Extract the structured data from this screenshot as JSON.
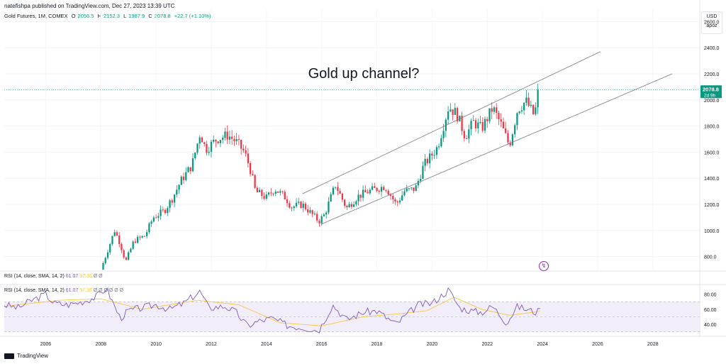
{
  "publisher_line": "natefishpa published on TradingView.com, Dec 27, 2023 13:39 UTC",
  "legend": {
    "symbol": "Gold Futures, 1M, COMEX",
    "o_label": "O",
    "o_value": "2056.5",
    "h_label": "H",
    "h_value": "2152.3",
    "l_label": "L",
    "l_value": "1987.9",
    "c_label": "C",
    "c_value": "2078.8",
    "change": "+22.7 (+1.10%)"
  },
  "currency_box": {
    "currency": "USD",
    "scale": "apoz"
  },
  "price_badge": {
    "price": "2078.8",
    "countdown": "2d 9h"
  },
  "annotation": {
    "text": "Gold up channel?"
  },
  "rsi_legend": {
    "label": "RSI (14, close, SMA, 14, 2)",
    "value_rsi": "61.07",
    "value_sma": "57.36",
    "extras": "Ø Ø"
  },
  "rsi_legend_2": {
    "label": "RSI (14, close, SMA, 14, 2)",
    "value_rsi": "61.07",
    "value_sma": "57.36",
    "extras": "Ø Ø Ø Ø Ø Ø"
  },
  "footer": {
    "brand": "TradingView"
  },
  "bolt_icon": "lightning-bolt-icon",
  "colors": {
    "up": "#089981",
    "down": "#f23645",
    "rsi": "#7e57c2",
    "rsi_sma": "#f5c842",
    "channel": "#787b86",
    "band": "#ede7f6"
  },
  "chart_data": {
    "type": "candlestick",
    "timeframe": "1M",
    "price_axis": {
      "min": 700,
      "max": 2700,
      "ticks": [
        "800.0",
        "1000.0",
        "1200.0",
        "1400.0",
        "1600.0",
        "1800.0",
        "2000.0",
        "2200.0",
        "2400.0",
        "2600.0"
      ],
      "tick_values": [
        800,
        1000,
        1200,
        1400,
        1600,
        1800,
        2000,
        2200,
        2400,
        2600
      ]
    },
    "time_axis": {
      "min": 2004.5,
      "max": 2029.7,
      "ticks": [
        "2006",
        "2008",
        "2010",
        "2012",
        "2014",
        "2016",
        "2018",
        "2020",
        "2022",
        "2024",
        "2026",
        "2028"
      ],
      "tick_values": [
        2006,
        2008,
        2010,
        2012,
        2014,
        2016,
        2018,
        2020,
        2022,
        2024,
        2026,
        2028
      ]
    },
    "last_price": 2078.8,
    "channel_lines": [
      {
        "name": "upper",
        "from": [
          2015.3,
          1280
        ],
        "to": [
          2026.1,
          2370
        ]
      },
      {
        "name": "lower",
        "from": [
          2016.0,
          1050
        ],
        "to": [
          2028.7,
          2200
        ]
      }
    ],
    "close_anchors": [
      [
        2008.0,
        700
      ],
      [
        2008.2,
        820
      ],
      [
        2008.5,
        1000
      ],
      [
        2008.7,
        900
      ],
      [
        2008.9,
        760
      ],
      [
        2009.2,
        920
      ],
      [
        2009.6,
        960
      ],
      [
        2009.9,
        1100
      ],
      [
        2010.3,
        1150
      ],
      [
        2010.6,
        1250
      ],
      [
        2010.9,
        1380
      ],
      [
        2011.3,
        1500
      ],
      [
        2011.6,
        1750
      ],
      [
        2011.8,
        1620
      ],
      [
        2012.2,
        1700
      ],
      [
        2012.6,
        1730
      ],
      [
        2012.9,
        1680
      ],
      [
        2013.2,
        1600
      ],
      [
        2013.4,
        1480
      ],
      [
        2013.6,
        1300
      ],
      [
        2014.0,
        1250
      ],
      [
        2014.3,
        1320
      ],
      [
        2014.7,
        1250
      ],
      [
        2014.9,
        1180
      ],
      [
        2015.3,
        1200
      ],
      [
        2015.9,
        1070
      ],
      [
        2016.1,
        1120
      ],
      [
        2016.5,
        1350
      ],
      [
        2016.9,
        1170
      ],
      [
        2017.3,
        1260
      ],
      [
        2017.7,
        1300
      ],
      [
        2018.3,
        1340
      ],
      [
        2018.7,
        1200
      ],
      [
        2019.0,
        1300
      ],
      [
        2019.4,
        1320
      ],
      [
        2019.7,
        1500
      ],
      [
        2020.0,
        1580
      ],
      [
        2020.2,
        1640
      ],
      [
        2020.6,
        1950
      ],
      [
        2020.9,
        1890
      ],
      [
        2021.2,
        1720
      ],
      [
        2021.5,
        1830
      ],
      [
        2021.8,
        1780
      ],
      [
        2022.2,
        1940
      ],
      [
        2022.5,
        1810
      ],
      [
        2022.8,
        1650
      ],
      [
        2023.1,
        1930
      ],
      [
        2023.4,
        1990
      ],
      [
        2023.7,
        1880
      ],
      [
        2023.9,
        2078.8
      ]
    ],
    "rsi_panel": {
      "axis": {
        "min": 25,
        "max": 92,
        "ticks": [
          "40.00",
          "60.00",
          "80.00"
        ],
        "tick_values": [
          40,
          60,
          80
        ]
      },
      "band": [
        30,
        70
      ],
      "mid": 50,
      "rsi_anchors": [
        [
          2004.5,
          66
        ],
        [
          2005.0,
          62
        ],
        [
          2005.5,
          72
        ],
        [
          2006.0,
          80
        ],
        [
          2006.3,
          68
        ],
        [
          2006.8,
          66
        ],
        [
          2007.3,
          70
        ],
        [
          2007.8,
          76
        ],
        [
          2008.2,
          88
        ],
        [
          2008.7,
          48
        ],
        [
          2009.0,
          58
        ],
        [
          2009.5,
          62
        ],
        [
          2010.0,
          66
        ],
        [
          2010.5,
          60
        ],
        [
          2011.0,
          68
        ],
        [
          2011.6,
          84
        ],
        [
          2011.9,
          62
        ],
        [
          2012.5,
          64
        ],
        [
          2012.9,
          56
        ],
        [
          2013.3,
          38
        ],
        [
          2013.7,
          44
        ],
        [
          2014.2,
          48
        ],
        [
          2014.8,
          38
        ],
        [
          2015.3,
          36
        ],
        [
          2015.9,
          32
        ],
        [
          2016.4,
          66
        ],
        [
          2016.9,
          46
        ],
        [
          2017.5,
          56
        ],
        [
          2018.0,
          58
        ],
        [
          2018.7,
          40
        ],
        [
          2019.0,
          50
        ],
        [
          2019.5,
          66
        ],
        [
          2020.0,
          68
        ],
        [
          2020.6,
          86
        ],
        [
          2021.0,
          62
        ],
        [
          2021.4,
          58
        ],
        [
          2021.8,
          56
        ],
        [
          2022.2,
          64
        ],
        [
          2022.7,
          42
        ],
        [
          2023.1,
          64
        ],
        [
          2023.4,
          60
        ],
        [
          2023.8,
          56
        ],
        [
          2023.95,
          61.07
        ]
      ],
      "sma_anchors": [
        [
          2004.5,
          64
        ],
        [
          2006.5,
          72
        ],
        [
          2008.0,
          74
        ],
        [
          2009.5,
          60
        ],
        [
          2011.5,
          72
        ],
        [
          2013.0,
          66
        ],
        [
          2014.5,
          42
        ],
        [
          2016.0,
          38
        ],
        [
          2017.5,
          50
        ],
        [
          2018.8,
          54
        ],
        [
          2019.8,
          58
        ],
        [
          2020.8,
          76
        ],
        [
          2021.8,
          60
        ],
        [
          2022.8,
          52
        ],
        [
          2023.95,
          57.36
        ]
      ]
    }
  }
}
